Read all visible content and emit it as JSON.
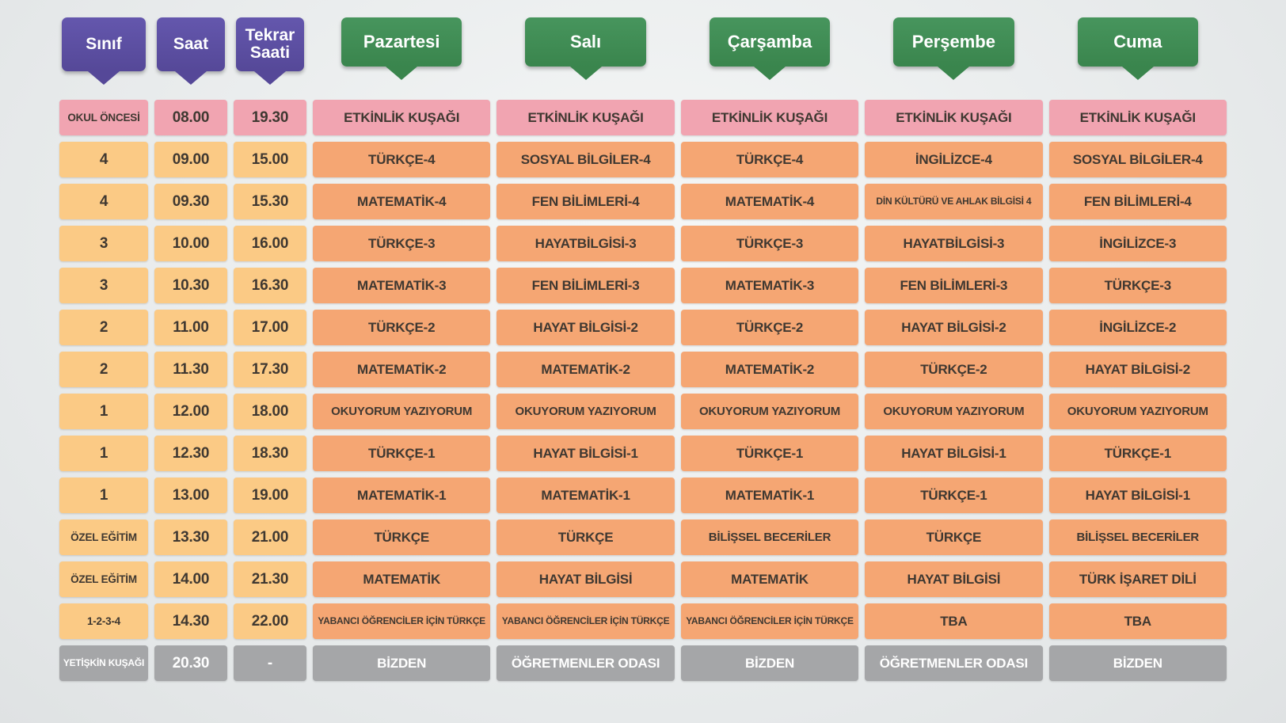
{
  "header": {
    "columns": [
      {
        "label": "Sınıf"
      },
      {
        "label": "Saat"
      },
      {
        "label": "Tekrar Saati"
      }
    ],
    "days": [
      "Pazartesi",
      "Salı",
      "Çarşamba",
      "Perşembe",
      "Cuma"
    ]
  },
  "rows": [
    {
      "class": "OKUL ÖNCESİ",
      "time": "08.00",
      "repeat": "19.30",
      "variant": "pink",
      "cells": [
        "ETKİNLİK KUŞAĞI",
        "ETKİNLİK KUŞAĞI",
        "ETKİNLİK KUŞAĞI",
        "ETKİNLİK KUŞAĞI",
        "ETKİNLİK KUŞAĞI"
      ]
    },
    {
      "class": "4",
      "time": "09.00",
      "repeat": "15.00",
      "variant": "orange",
      "cells": [
        "TÜRKÇE-4",
        "SOSYAL BİLGİLER-4",
        "TÜRKÇE-4",
        "İNGİLİZCE-4",
        "SOSYAL BİLGİLER-4"
      ]
    },
    {
      "class": "4",
      "time": "09.30",
      "repeat": "15.30",
      "variant": "orange",
      "cells": [
        "MATEMATİK-4",
        "FEN BİLİMLERİ-4",
        "MATEMATİK-4",
        "DİN KÜLTÜRÜ VE AHLAK BİLGİSİ 4",
        "FEN BİLİMLERİ-4"
      ]
    },
    {
      "class": "3",
      "time": "10.00",
      "repeat": "16.00",
      "variant": "orange",
      "cells": [
        "TÜRKÇE-3",
        "HAYATBİLGİSİ-3",
        "TÜRKÇE-3",
        "HAYATBİLGİSİ-3",
        "İNGİLİZCE-3"
      ]
    },
    {
      "class": "3",
      "time": "10.30",
      "repeat": "16.30",
      "variant": "orange",
      "cells": [
        "MATEMATİK-3",
        "FEN BİLİMLERİ-3",
        "MATEMATİK-3",
        "FEN BİLİMLERİ-3",
        "TÜRKÇE-3"
      ]
    },
    {
      "class": "2",
      "time": "11.00",
      "repeat": "17.00",
      "variant": "orange",
      "cells": [
        "TÜRKÇE-2",
        "HAYAT BİLGİSİ-2",
        "TÜRKÇE-2",
        "HAYAT BİLGİSİ-2",
        "İNGİLİZCE-2"
      ]
    },
    {
      "class": "2",
      "time": "11.30",
      "repeat": "17.30",
      "variant": "orange",
      "cells": [
        "MATEMATİK-2",
        "MATEMATİK-2",
        "MATEMATİK-2",
        "TÜRKÇE-2",
        "HAYAT BİLGİSİ-2"
      ]
    },
    {
      "class": "1",
      "time": "12.00",
      "repeat": "18.00",
      "variant": "orange",
      "cells": [
        "OKUYORUM YAZIYORUM",
        "OKUYORUM YAZIYORUM",
        "OKUYORUM YAZIYORUM",
        "OKUYORUM YAZIYORUM",
        "OKUYORUM YAZIYORUM"
      ]
    },
    {
      "class": "1",
      "time": "12.30",
      "repeat": "18.30",
      "variant": "orange",
      "cells": [
        "TÜRKÇE-1",
        "HAYAT BİLGİSİ-1",
        "TÜRKÇE-1",
        "HAYAT BİLGİSİ-1",
        "TÜRKÇE-1"
      ]
    },
    {
      "class": "1",
      "time": "13.00",
      "repeat": "19.00",
      "variant": "orange",
      "cells": [
        "MATEMATİK-1",
        "MATEMATİK-1",
        "MATEMATİK-1",
        "TÜRKÇE-1",
        "HAYAT BİLGİSİ-1"
      ]
    },
    {
      "class": "ÖZEL EĞİTİM",
      "time": "13.30",
      "repeat": "21.00",
      "variant": "orange",
      "cells": [
        "TÜRKÇE",
        "TÜRKÇE",
        "BİLİŞSEL BECERİLER",
        "TÜRKÇE",
        "BİLİŞSEL BECERİLER"
      ]
    },
    {
      "class": "ÖZEL EĞİTİM",
      "time": "14.00",
      "repeat": "21.30",
      "variant": "orange",
      "cells": [
        "MATEMATİK",
        "HAYAT BİLGİSİ",
        "MATEMATİK",
        "HAYAT BİLGİSİ",
        "TÜRK İŞARET DİLİ"
      ]
    },
    {
      "class": "1-2-3-4",
      "time": "14.30",
      "repeat": "22.00",
      "variant": "orange",
      "cells": [
        "YABANCI ÖĞRENCİLER İÇİN TÜRKÇE",
        "YABANCI ÖĞRENCİLER İÇİN TÜRKÇE",
        "YABANCI ÖĞRENCİLER İÇİN TÜRKÇE",
        "TBA",
        "TBA"
      ]
    },
    {
      "class": "YETİŞKİN KUŞAĞI",
      "time": "20.30",
      "repeat": "-",
      "variant": "gray",
      "cells": [
        "BİZDEN",
        "ÖĞRETMENLER ODASI",
        "BİZDEN",
        "ÖĞRETMENLER ODASI",
        "BİZDEN"
      ]
    }
  ],
  "colors": {
    "purple_badge": "#554898",
    "purple_badge_light": "#6457ad",
    "green_badge": "#3a854d",
    "green_badge_light": "#47955d",
    "pink_cell": "#f1a4b1",
    "class_cell": "#fbca85",
    "subject_cell": "#f5a673",
    "gray_cell": "#a5a6a8",
    "text_dark": "#3f3831",
    "text_light": "#ffffff"
  }
}
